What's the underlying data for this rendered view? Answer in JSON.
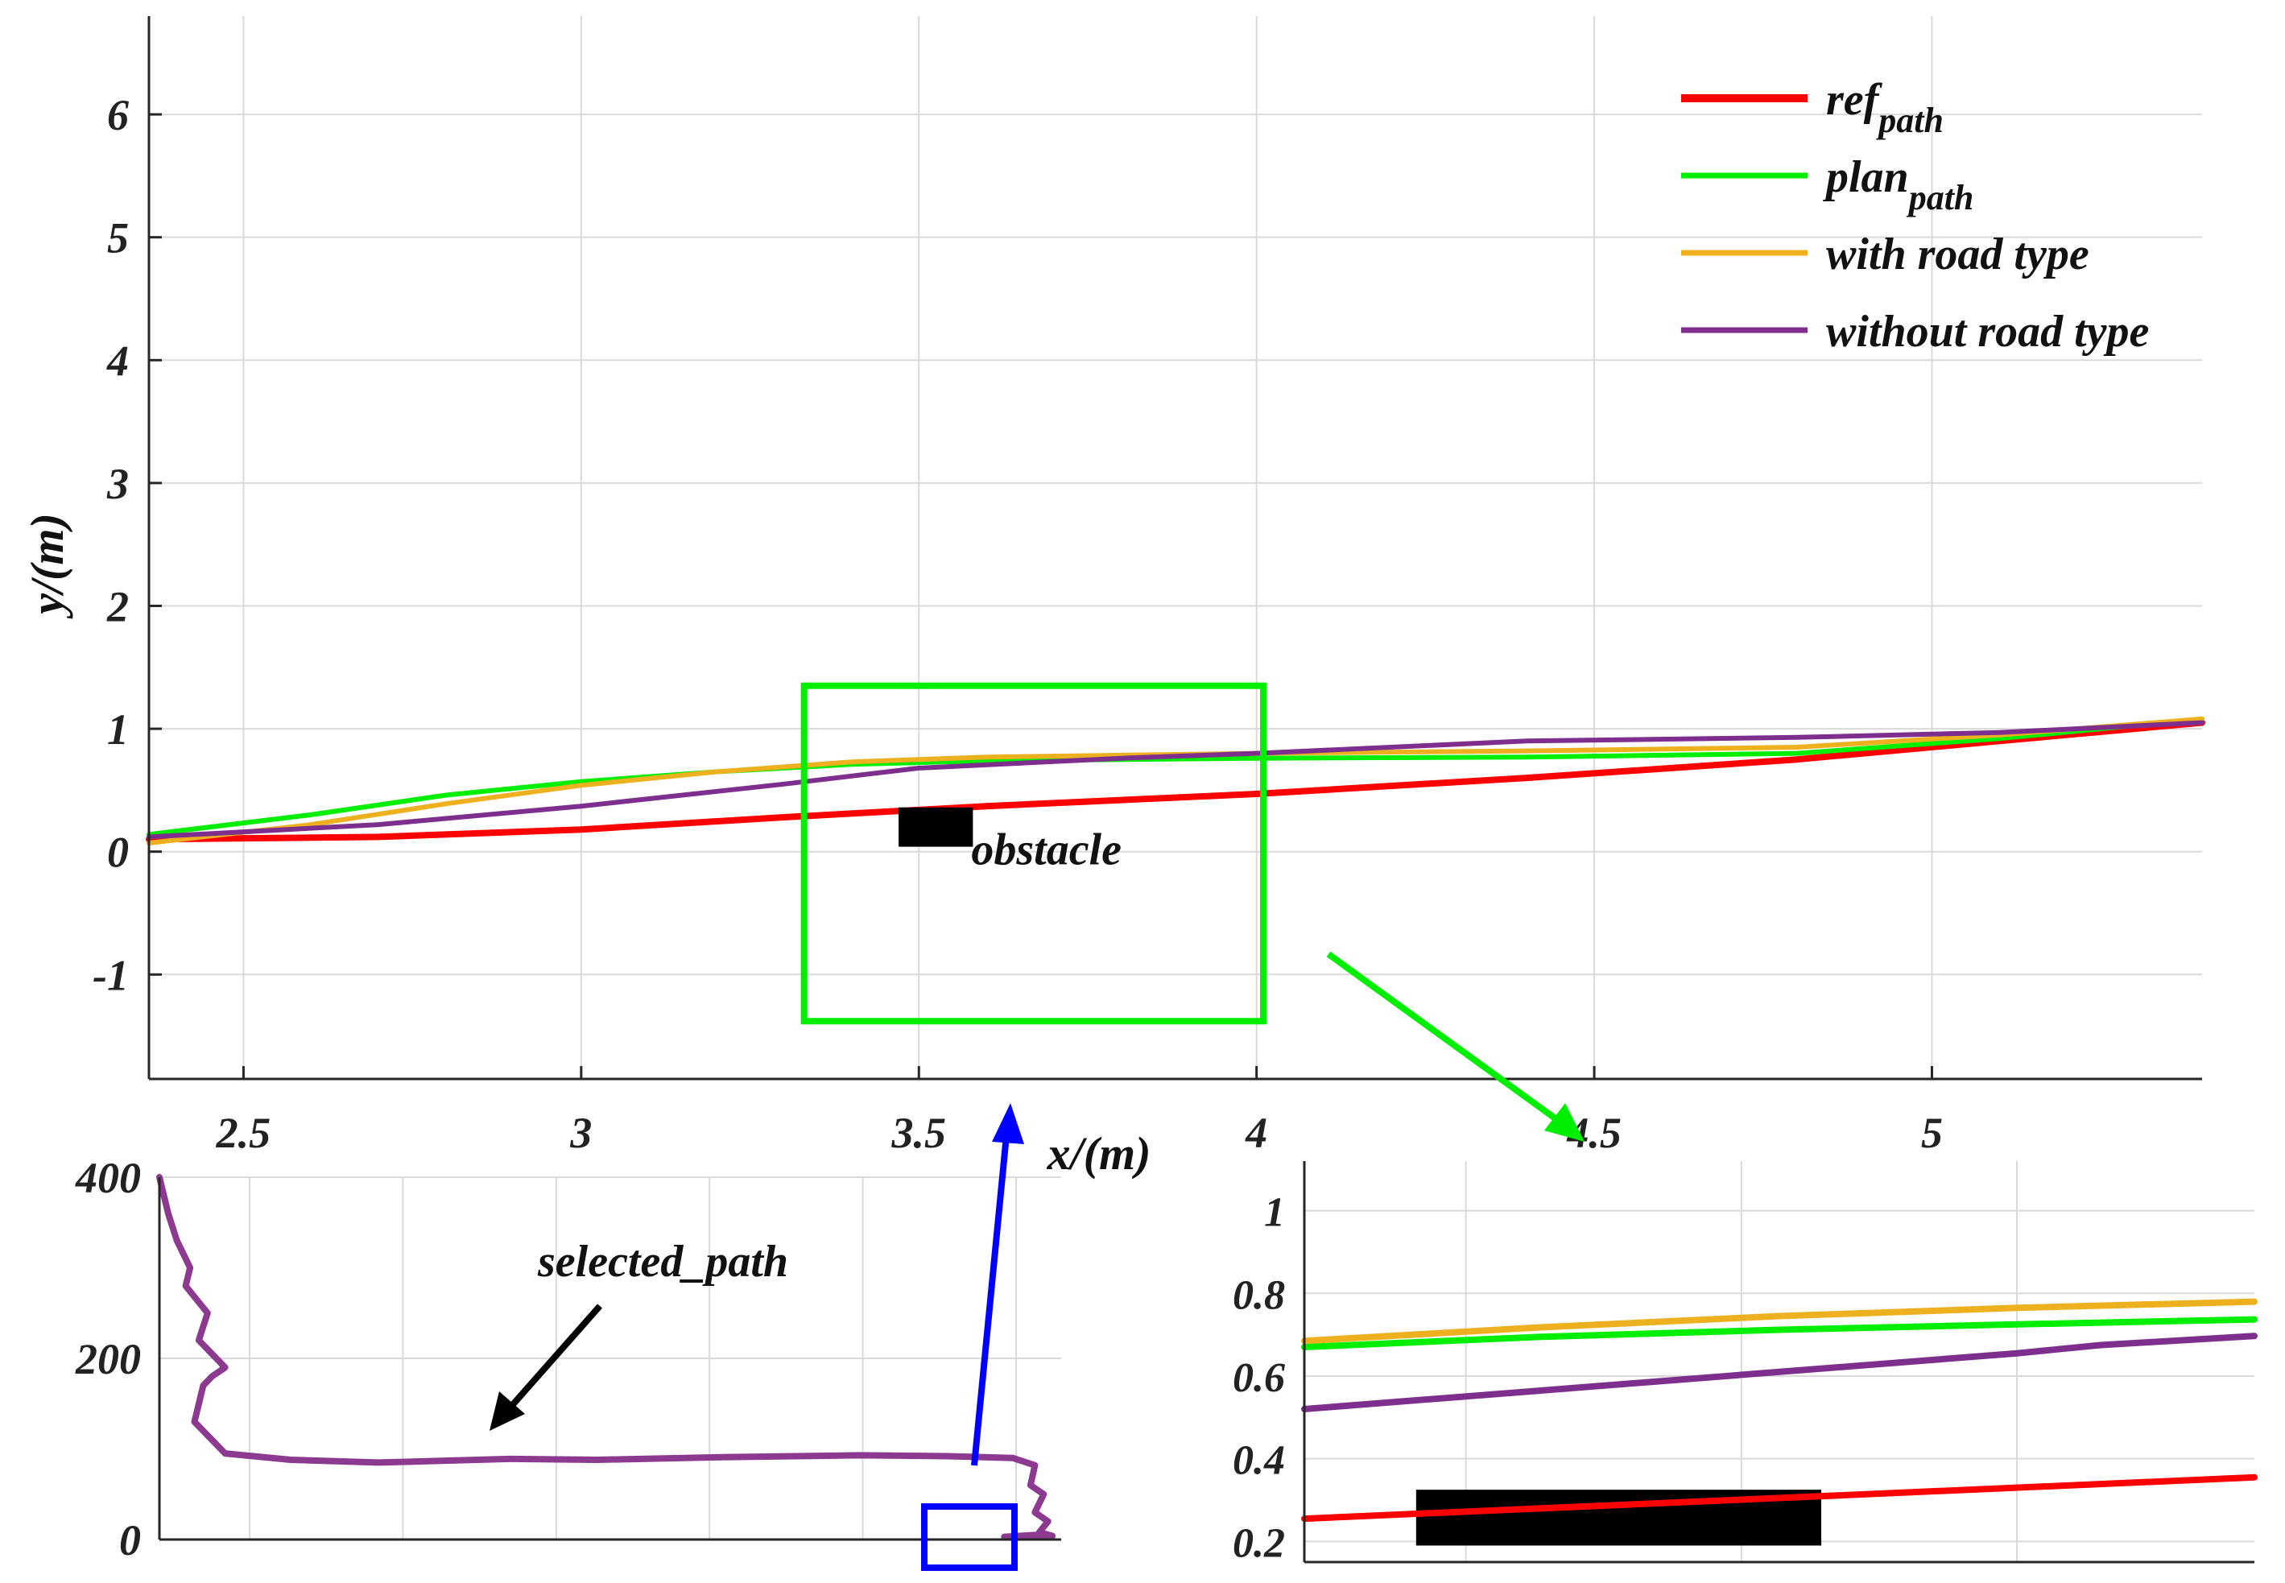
{
  "chart_data": [
    {
      "id": "main",
      "type": "line",
      "xlabel": "x/(m)",
      "ylabel": "y/(m)",
      "xlim": [
        2.36,
        5.4
      ],
      "ylim": [
        -1.85,
        6.8
      ],
      "xticks": [
        2.5,
        3,
        3.5,
        4,
        4.5,
        5
      ],
      "xtick_labels": [
        "2.5",
        "3",
        "3.5",
        "4",
        "4.5",
        "5"
      ],
      "yticks": [
        -1,
        0,
        1,
        2,
        3,
        4,
        5,
        6
      ],
      "ytick_labels": [
        "-1",
        "0",
        "1",
        "2",
        "3",
        "4",
        "5",
        "6"
      ],
      "grid": true,
      "legend_position": "top-right",
      "series": [
        {
          "name": "ref",
          "subscript": "path",
          "color": "#ff0000",
          "x": [
            2.36,
            2.7,
            3.0,
            3.3,
            3.6,
            4.0,
            4.4,
            4.8,
            5.1,
            5.4
          ],
          "y": [
            0.1,
            0.12,
            0.18,
            0.28,
            0.37,
            0.47,
            0.6,
            0.75,
            0.9,
            1.05
          ]
        },
        {
          "name": "plan",
          "subscript": "path",
          "color": "#00ee00",
          "x": [
            2.36,
            2.6,
            2.8,
            3.0,
            3.2,
            3.4,
            3.6,
            4.0,
            4.4,
            4.8,
            5.1,
            5.4
          ],
          "y": [
            0.14,
            0.3,
            0.46,
            0.57,
            0.65,
            0.71,
            0.74,
            0.76,
            0.77,
            0.8,
            0.92,
            1.08
          ]
        },
        {
          "name": "with road type",
          "color": "#edb120",
          "x": [
            2.36,
            2.6,
            2.8,
            3.0,
            3.2,
            3.4,
            3.6,
            4.0,
            4.4,
            4.8,
            5.1,
            5.4
          ],
          "y": [
            0.07,
            0.22,
            0.39,
            0.54,
            0.65,
            0.73,
            0.77,
            0.8,
            0.82,
            0.85,
            0.95,
            1.08
          ]
        },
        {
          "name": "without road type",
          "color": "#7e2f8e",
          "x": [
            2.36,
            2.7,
            3.0,
            3.3,
            3.5,
            3.8,
            4.0,
            4.4,
            4.8,
            5.1,
            5.4
          ],
          "y": [
            0.12,
            0.22,
            0.37,
            0.55,
            0.68,
            0.76,
            0.8,
            0.9,
            0.93,
            0.97,
            1.05
          ]
        }
      ],
      "annotations": [
        {
          "type": "obstacle",
          "text": "obstacle",
          "x": [
            3.47,
            3.58
          ],
          "y": [
            0.04,
            0.36
          ]
        },
        {
          "type": "zoom-box",
          "color": "#00ee00",
          "x": [
            3.33,
            4.01
          ],
          "y": [
            -1.38,
            1.35
          ]
        }
      ]
    },
    {
      "id": "inset-bottom-left",
      "type": "line",
      "ylim": [
        0,
        400
      ],
      "yticks": [
        0,
        200,
        400
      ],
      "ytick_labels": [
        "0",
        "200",
        "400"
      ],
      "grid": true,
      "series": [
        {
          "name": "selected_path",
          "color": "#8b3a8f",
          "x": [
            0,
            20,
            40,
            70,
            60,
            110,
            90,
            150,
            120,
            100,
            80,
            150,
            300,
            500,
            800,
            1000,
            1300,
            1600,
            1800,
            1950,
            2000,
            1990,
            2020,
            2000,
            2030,
            2010,
            2040,
            2000,
            1930
          ],
          "y": [
            400,
            360,
            330,
            300,
            280,
            250,
            220,
            190,
            180,
            170,
            130,
            95,
            88,
            85,
            89,
            88,
            91,
            93,
            92,
            90,
            82,
            60,
            50,
            30,
            20,
            8,
            4,
            5,
            3
          ]
        }
      ],
      "annotations": [
        {
          "type": "label",
          "text": "selected_path"
        },
        {
          "type": "highlight-box",
          "color": "#0000ff"
        }
      ]
    },
    {
      "id": "inset-zoom",
      "type": "line",
      "xlim": [
        3.33,
        4.01
      ],
      "ylim": [
        0.15,
        1.12
      ],
      "yticks": [
        0.2,
        0.4,
        0.6,
        0.8,
        1
      ],
      "ytick_labels": [
        "0.2",
        "0.4",
        "0.6",
        "0.8",
        "1"
      ],
      "grid": true,
      "series": [
        {
          "name": "ref",
          "color": "#ff0000",
          "x": [
            3.33,
            3.67,
            4.01
          ],
          "y": [
            0.255,
            0.305,
            0.355
          ]
        },
        {
          "name": "plan",
          "color": "#00ee00",
          "x": [
            3.33,
            3.5,
            3.67,
            3.84,
            4.01
          ],
          "y": [
            0.67,
            0.695,
            0.712,
            0.725,
            0.737
          ]
        },
        {
          "name": "with road type",
          "color": "#edb120",
          "x": [
            3.33,
            3.5,
            3.67,
            3.84,
            4.01
          ],
          "y": [
            0.685,
            0.718,
            0.745,
            0.765,
            0.78
          ]
        },
        {
          "name": "without road type",
          "color": "#7e2f8e",
          "x": [
            3.33,
            3.5,
            3.67,
            3.84,
            3.9,
            4.01
          ],
          "y": [
            0.52,
            0.565,
            0.61,
            0.655,
            0.675,
            0.697
          ]
        }
      ],
      "obstacle": {
        "x": [
          3.41,
          3.7
        ],
        "y": [
          0.19,
          0.325
        ]
      }
    }
  ]
}
